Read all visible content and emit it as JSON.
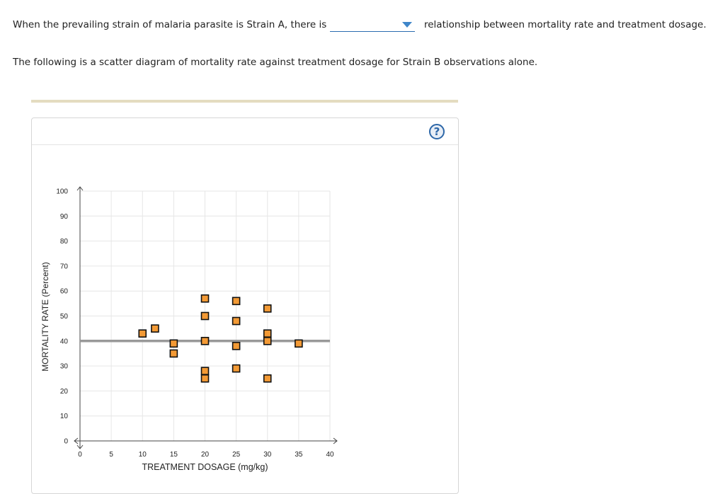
{
  "question": {
    "line1_before": "When the prevailing strain of malaria parasite is Strain A, there is",
    "line1_after": "relationship between mortality rate and treatment dosage.",
    "dropdown_value": "",
    "line2": "The following is a scatter diagram of mortality rate against treatment dosage for Strain B observations alone."
  },
  "help_label": "?",
  "colors": {
    "marker_fill": "#f39a35",
    "marker_stroke": "#111111",
    "mean_line": "#999999",
    "grid": "#e6e6e6",
    "dropdown_caret": "#3f86c9"
  },
  "chart_data": {
    "type": "scatter",
    "title": "",
    "xlabel": "TREATMENT DOSAGE (mg/kg)",
    "ylabel": "MORTALITY RATE (Percent)",
    "xlim": [
      0,
      40
    ],
    "ylim": [
      0,
      100
    ],
    "xticks": [
      0,
      5,
      10,
      15,
      20,
      25,
      30,
      35,
      40
    ],
    "yticks": [
      0,
      10,
      20,
      30,
      40,
      50,
      60,
      70,
      80,
      90,
      100
    ],
    "grid": true,
    "reference_line": {
      "y": 40
    },
    "points": [
      {
        "x": 10,
        "y": 43
      },
      {
        "x": 12,
        "y": 45
      },
      {
        "x": 15,
        "y": 39
      },
      {
        "x": 15,
        "y": 35
      },
      {
        "x": 20,
        "y": 57
      },
      {
        "x": 20,
        "y": 50
      },
      {
        "x": 20,
        "y": 40
      },
      {
        "x": 20,
        "y": 28
      },
      {
        "x": 20,
        "y": 25
      },
      {
        "x": 25,
        "y": 56
      },
      {
        "x": 25,
        "y": 48
      },
      {
        "x": 25,
        "y": 38
      },
      {
        "x": 25,
        "y": 29
      },
      {
        "x": 30,
        "y": 53
      },
      {
        "x": 30,
        "y": 43
      },
      {
        "x": 30,
        "y": 40
      },
      {
        "x": 30,
        "y": 25
      },
      {
        "x": 35,
        "y": 39
      }
    ]
  }
}
